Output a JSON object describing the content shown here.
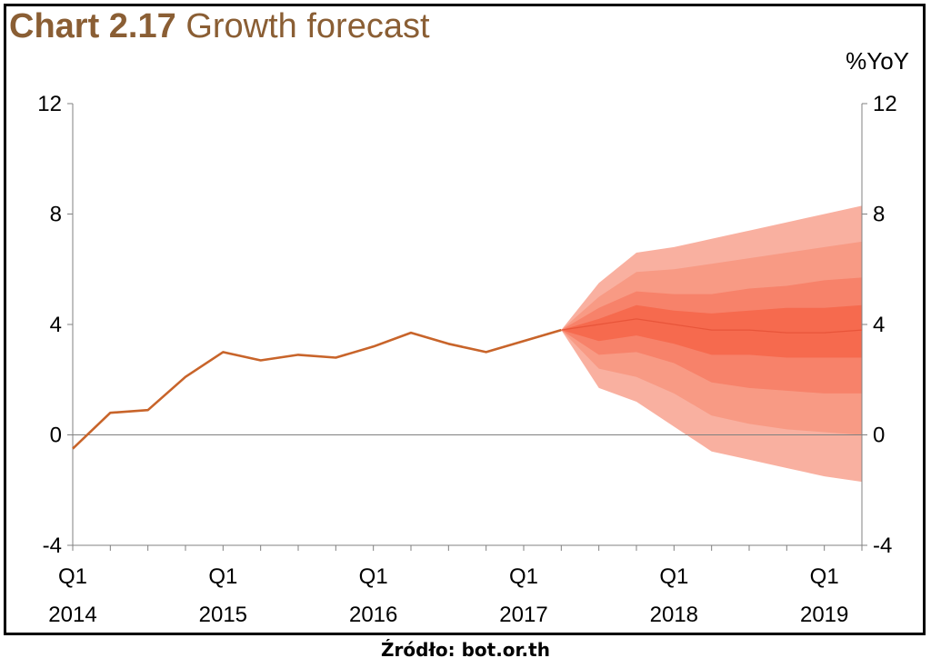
{
  "header": {
    "title_prefix": "Chart 2.17",
    "title_text": "Growth forecast",
    "unit": "%YoY"
  },
  "source": "Źródło: bot.or.th",
  "colors": {
    "title": "#8a5e34",
    "line": "#c8642a",
    "fan_outer": "#f9b0a0",
    "fan_2": "#f89a84",
    "fan_3": "#f7826a",
    "fan_inner": "#f66a4e"
  },
  "chart_data": {
    "type": "area",
    "ylim": [
      -4,
      12
    ],
    "yticks": [
      -4,
      0,
      4,
      8,
      12
    ],
    "dual_y_axis": true,
    "x_tick_labels": [
      {
        "q": "Q1",
        "year": "2014",
        "index": 0
      },
      {
        "q": "Q1",
        "year": "2015",
        "index": 4
      },
      {
        "q": "Q1",
        "year": "2016",
        "index": 8
      },
      {
        "q": "Q1",
        "year": "2017",
        "index": 12
      },
      {
        "q": "Q1",
        "year": "2018",
        "index": 16
      },
      {
        "q": "Q1",
        "year": "2019",
        "index": 20
      }
    ],
    "x_count": 22,
    "actual": {
      "quarters": [
        "2014Q1",
        "2014Q2",
        "2014Q3",
        "2014Q4",
        "2015Q1",
        "2015Q2",
        "2015Q3",
        "2015Q4",
        "2016Q1",
        "2016Q2",
        "2016Q3",
        "2016Q4",
        "2017Q1",
        "2017Q2"
      ],
      "values": [
        -0.5,
        0.8,
        0.9,
        2.1,
        3.0,
        2.7,
        2.9,
        2.8,
        3.2,
        3.7,
        3.3,
        3.0,
        3.4,
        3.8
      ]
    },
    "forecast": {
      "quarters": [
        "2017Q2",
        "2017Q3",
        "2017Q4",
        "2018Q1",
        "2018Q2",
        "2018Q3",
        "2018Q4",
        "2019Q1",
        "2019Q2"
      ],
      "central": [
        3.8,
        4.0,
        4.2,
        4.0,
        3.8,
        3.8,
        3.7,
        3.7,
        3.8
      ],
      "bands": [
        {
          "lower": [
            3.8,
            1.7,
            1.2,
            0.3,
            -0.6,
            -0.9,
            -1.2,
            -1.5,
            -1.7
          ],
          "upper": [
            3.8,
            5.5,
            6.6,
            6.8,
            7.1,
            7.4,
            7.7,
            8.0,
            8.3
          ]
        },
        {
          "lower": [
            3.8,
            2.4,
            2.1,
            1.5,
            0.7,
            0.4,
            0.2,
            0.1,
            0.0
          ],
          "upper": [
            3.8,
            5.0,
            5.9,
            6.0,
            6.2,
            6.4,
            6.6,
            6.8,
            7.0
          ]
        },
        {
          "lower": [
            3.8,
            2.9,
            3.0,
            2.6,
            1.9,
            1.7,
            1.6,
            1.5,
            1.5
          ],
          "upper": [
            3.8,
            4.6,
            5.2,
            5.1,
            5.1,
            5.3,
            5.4,
            5.6,
            5.7
          ]
        },
        {
          "lower": [
            3.8,
            3.4,
            3.6,
            3.3,
            2.9,
            2.9,
            2.8,
            2.8,
            2.8
          ],
          "upper": [
            3.8,
            4.2,
            4.7,
            4.5,
            4.4,
            4.5,
            4.6,
            4.6,
            4.7
          ]
        }
      ]
    }
  }
}
